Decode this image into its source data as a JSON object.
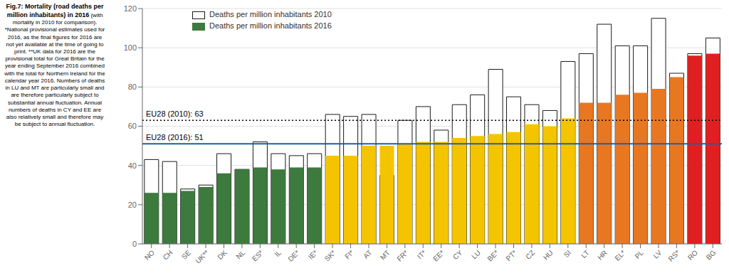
{
  "chart_data": {
    "type": "bar",
    "title": "Fig.7: Mortality (road deaths per million inhabitants) in 2016",
    "subtitle": "(with mortality in 2010 for comparison). *National provisional estimates used for 2016, as the final figures for 2016 are not yet available at the time of going to print. **UK data for 2016 are the provisional total for Great Britain for the year ending September 2016 combined with the total for Northern Ireland for the calendar year 2016. Numbers of deaths in LU and MT are particularly small and are therefore particularly subject to substantial annual fluctuation. Annual numbers of deaths in CY and EE are also relatively small and therefore may be subject to annual fluctuation.",
    "categories": [
      "NO",
      "CH",
      "SE",
      "UK**",
      "DK",
      "NL",
      "ES*",
      "IL",
      "DE*",
      "IE*",
      "SK*",
      "FI*",
      "AT",
      "MT",
      "FR*",
      "IT*",
      "EE*",
      "CY",
      "LU",
      "BE*",
      "PT*",
      "CZ",
      "HU",
      "SI",
      "LT",
      "HR",
      "EL*",
      "PL",
      "LV",
      "RS*",
      "RO",
      "BG"
    ],
    "series": [
      {
        "name": "Deaths per million inhabitants 2010",
        "color": "#ffffff",
        "values": [
          43,
          42,
          28,
          30,
          46,
          38,
          52,
          46,
          45,
          46,
          66,
          65,
          66,
          35,
          63,
          70,
          58,
          71,
          76,
          89,
          75,
          71,
          68,
          93,
          97,
          112,
          101,
          101,
          115,
          87,
          97,
          105
        ]
      },
      {
        "name": "Deaths per million inhabitants 2016",
        "colors": [
          "#3d7a3d",
          "#3d7a3d",
          "#3d7a3d",
          "#3d7a3d",
          "#3d7a3d",
          "#3d7a3d",
          "#3d7a3d",
          "#3d7a3d",
          "#3d7a3d",
          "#3d7a3d",
          "#f5c400",
          "#f5c400",
          "#f5c400",
          "#f5c400",
          "#f5c400",
          "#f5c400",
          "#f5c400",
          "#f5c400",
          "#f5c400",
          "#f5c400",
          "#f5c400",
          "#f5c400",
          "#f5c400",
          "#f5c400",
          "#e87722",
          "#e87722",
          "#e87722",
          "#e87722",
          "#e87722",
          "#e87722",
          "#e02020",
          "#e02020"
        ],
        "values": [
          26,
          26,
          27,
          29,
          36,
          38,
          39,
          38,
          39,
          39,
          45,
          45,
          50,
          50,
          51,
          52,
          52,
          54,
          55,
          56,
          57,
          61,
          60,
          64,
          72,
          72,
          76,
          77,
          79,
          85,
          96,
          97
        ]
      }
    ],
    "annotations": [
      {
        "text": "EU28 (2010): 63",
        "y": 63,
        "color": "#000000",
        "line_style": "dotted"
      },
      {
        "text": "EU28 (2016): 51",
        "y": 51,
        "color": "#1a5fa8",
        "line_style": "solid"
      }
    ],
    "ylim": [
      0,
      120
    ],
    "yticks": [
      0,
      20,
      40,
      60,
      80,
      100,
      120
    ],
    "grid": true,
    "legend": "upper left"
  }
}
